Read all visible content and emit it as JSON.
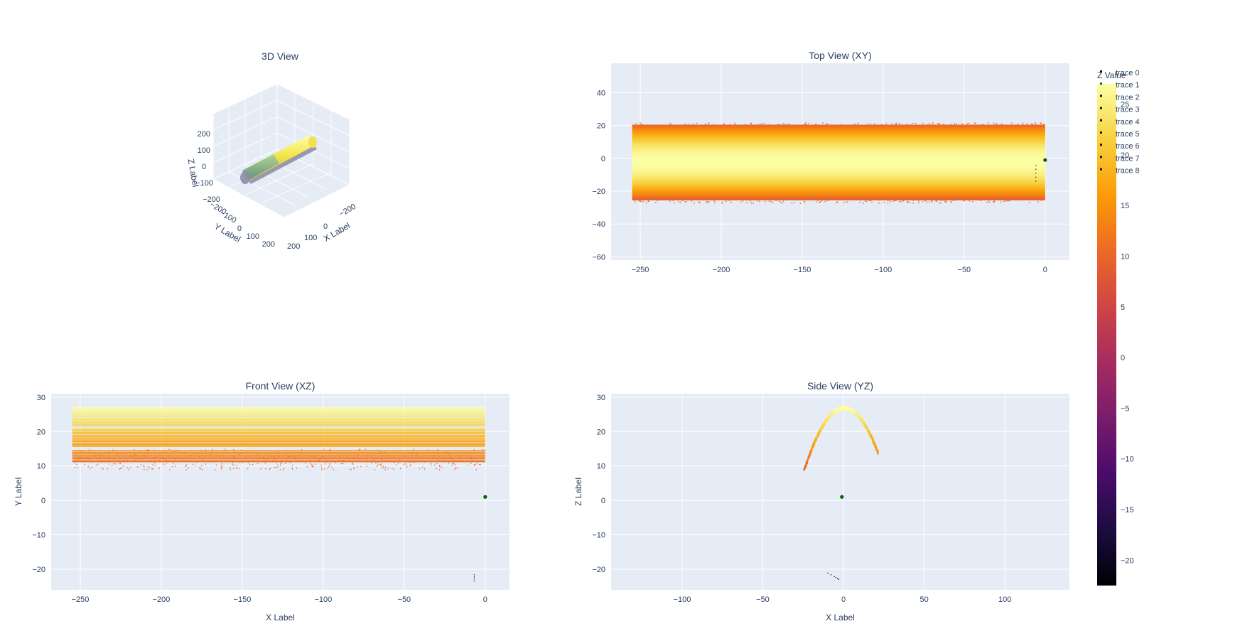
{
  "figure": {
    "legend": [
      "trace 0",
      "trace 1",
      "trace 2",
      "trace 3",
      "trace 4",
      "trace 5",
      "trace 6",
      "trace 7",
      "trace 8"
    ],
    "colorbar": {
      "title": "Z Value",
      "min": -22.5,
      "max": 27,
      "ticks": [
        -20,
        -15,
        -10,
        -5,
        0,
        5,
        10,
        15,
        20,
        25
      ],
      "colorscale": "inferno-like",
      "colors": [
        "#000004",
        "#1b0c41",
        "#4a0c6b",
        "#781c6d",
        "#a52c60",
        "#cf4446",
        "#ed6925",
        "#fb9b06",
        "#f7d13d",
        "#fcffa4"
      ]
    },
    "colors": {
      "plot_bg": "#e5ecf6",
      "grid": "#ffffff",
      "marker_green": "#006400",
      "marker_black": "#111111"
    }
  },
  "chart_data": [
    {
      "type": "scatter3d",
      "title": "3D View",
      "xlabel": "X Label",
      "ylabel": "Y Label",
      "zlabel": "Z Label",
      "x_ticks": [
        -200,
        0,
        100,
        200
      ],
      "y_ticks": [
        -200,
        -100,
        0,
        100,
        200
      ],
      "z_ticks": [
        -200,
        -100,
        0,
        100,
        200
      ],
      "x_tick_labels": [
        "−200",
        "0",
        "100",
        "200"
      ],
      "y_tick_labels": [
        "−200",
        "−100",
        "0",
        "100",
        "200"
      ],
      "z_tick_labels": [
        "−200",
        "−100",
        "0",
        "100",
        "200"
      ],
      "grid": true,
      "description": "Half-cylinder point cloud along X from -255 to 0, colored by Z value"
    },
    {
      "type": "scatter",
      "title": "Top View (XY)",
      "xlabel": "",
      "ylabel": "",
      "xlim": [
        -268,
        15
      ],
      "ylim": [
        -62,
        58
      ],
      "x_ticks": [
        -250,
        -200,
        -150,
        -100,
        -50,
        0
      ],
      "y_ticks": [
        -60,
        -40,
        -20,
        0,
        20,
        40
      ],
      "x_tick_labels": [
        "−250",
        "−200",
        "−150",
        "−100",
        "−50",
        "0"
      ],
      "y_tick_labels": [
        "−60",
        "−40",
        "−20",
        "0",
        "20",
        "40"
      ],
      "cloud": {
        "x_range": [
          -255,
          0
        ],
        "y_range": [
          -25,
          20
        ],
        "z_range": [
          9,
          27
        ]
      },
      "markers": [
        {
          "x": 0,
          "y": -1,
          "color": "green"
        }
      ],
      "grid": true
    },
    {
      "type": "scatter",
      "title": "Front View (XZ)",
      "xlabel": "X Label",
      "ylabel": "Y Label",
      "xlim": [
        -268,
        15
      ],
      "ylim": [
        -26,
        31
      ],
      "x_ticks": [
        -250,
        -200,
        -150,
        -100,
        -50,
        0
      ],
      "y_ticks": [
        -20,
        -10,
        0,
        10,
        20,
        30
      ],
      "x_tick_labels": [
        "−250",
        "−200",
        "−150",
        "−100",
        "−50",
        "0"
      ],
      "y_tick_labels": [
        "−20",
        "−10",
        "0",
        "10",
        "20",
        "30"
      ],
      "cloud": {
        "x_range": [
          -255,
          0
        ],
        "z_range": [
          9,
          27
        ]
      },
      "markers": [
        {
          "x": 0,
          "y": 1,
          "color": "green"
        }
      ],
      "grid": true
    },
    {
      "type": "scatter",
      "title": "Side View (YZ)",
      "xlabel": "X Label",
      "ylabel": "Z Label",
      "xlim": [
        -144,
        140
      ],
      "ylim": [
        -26,
        31
      ],
      "x_ticks": [
        -100,
        -50,
        0,
        50,
        100
      ],
      "y_ticks": [
        -20,
        -10,
        0,
        10,
        20,
        30
      ],
      "x_tick_labels": [
        "−100",
        "−50",
        "0",
        "50",
        "100"
      ],
      "y_tick_labels": [
        "−20",
        "−10",
        "0",
        "10",
        "20",
        "30"
      ],
      "arc": {
        "y_range": [
          -25,
          21
        ],
        "z_peak": 27,
        "z_low": 9
      },
      "markers": [
        {
          "x": -1,
          "y": 1,
          "color": "green"
        }
      ],
      "grid": true
    }
  ]
}
